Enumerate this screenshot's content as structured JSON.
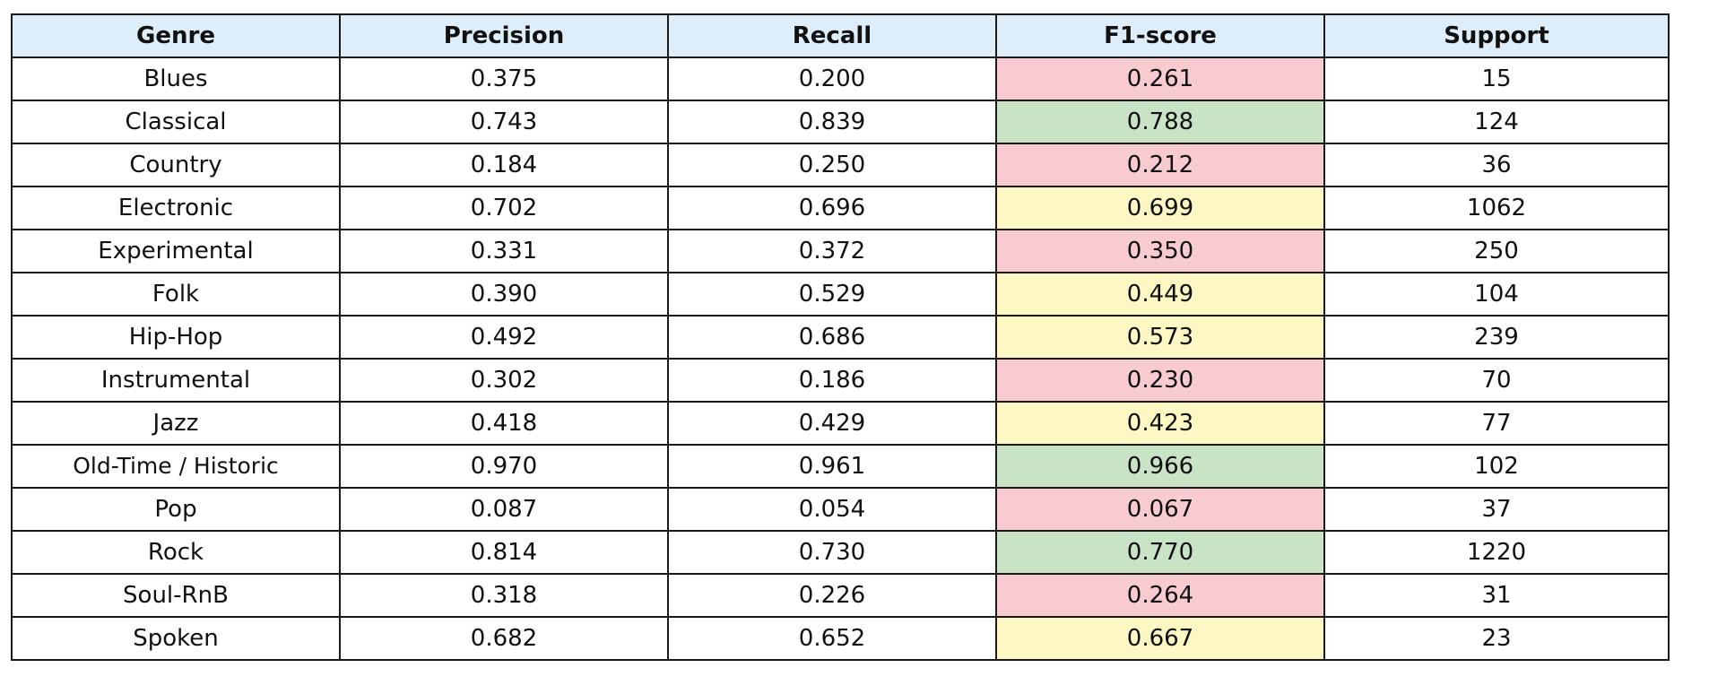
{
  "chart_data": {
    "type": "table",
    "columns": [
      "Genre",
      "Precision",
      "Recall",
      "F1-score",
      "Support"
    ],
    "rows": [
      [
        "Blues",
        "0.375",
        "0.200",
        "0.261",
        "15"
      ],
      [
        "Classical",
        "0.743",
        "0.839",
        "0.788",
        "124"
      ],
      [
        "Country",
        "0.184",
        "0.250",
        "0.212",
        "36"
      ],
      [
        "Electronic",
        "0.702",
        "0.696",
        "0.699",
        "1062"
      ],
      [
        "Experimental",
        "0.331",
        "0.372",
        "0.350",
        "250"
      ],
      [
        "Folk",
        "0.390",
        "0.529",
        "0.449",
        "104"
      ],
      [
        "Hip-Hop",
        "0.492",
        "0.686",
        "0.573",
        "239"
      ],
      [
        "Instrumental",
        "0.302",
        "0.186",
        "0.230",
        "70"
      ],
      [
        "Jazz",
        "0.418",
        "0.429",
        "0.423",
        "77"
      ],
      [
        "Old-Time / Historic",
        "0.970",
        "0.961",
        "0.966",
        "102"
      ],
      [
        "Pop",
        "0.087",
        "0.054",
        "0.067",
        "37"
      ],
      [
        "Rock",
        "0.814",
        "0.730",
        "0.770",
        "1220"
      ],
      [
        "Soul-RnB",
        "0.318",
        "0.226",
        "0.264",
        "31"
      ],
      [
        "Spoken",
        "0.682",
        "0.652",
        "0.667",
        "23"
      ]
    ],
    "f1_fill": [
      "low",
      "high",
      "low",
      "mid",
      "low",
      "mid",
      "mid",
      "low",
      "mid",
      "high",
      "low",
      "high",
      "low",
      "mid"
    ]
  },
  "colors": {
    "header_bg": "#ddeefa",
    "f1_low": "#f8cbd0",
    "f1_mid": "#fdf7c3",
    "f1_high": "#c8e3c6",
    "border": "#1a1a1a",
    "text": "#111111"
  }
}
